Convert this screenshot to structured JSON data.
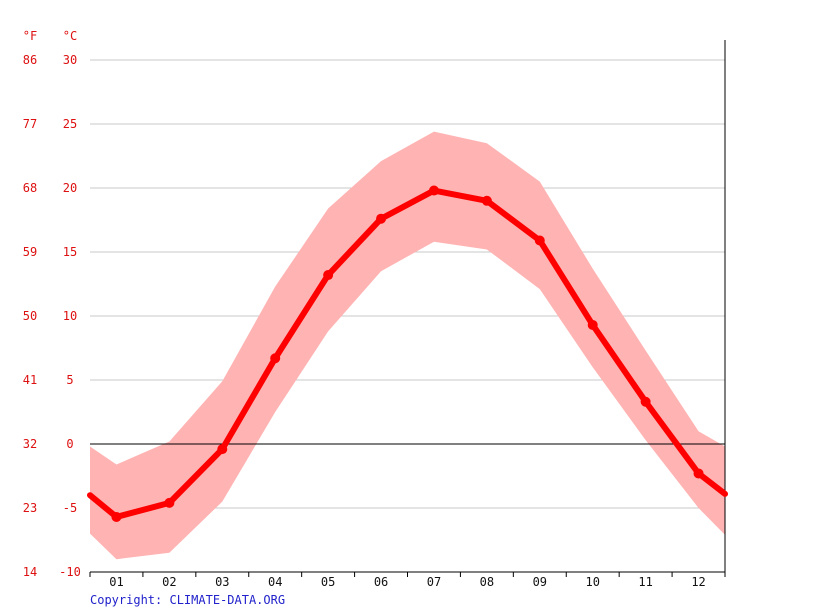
{
  "colors": {
    "axis_text": "#dd1111",
    "line": "#ff0000",
    "band": "#ffb3b3",
    "grid": "#c8c8c8",
    "zero_line": "#000000",
    "copyright": "#2222cc",
    "x_text": "#111111"
  },
  "chart_data": {
    "type": "line",
    "title": "",
    "xlabel": "",
    "ylabel": "",
    "unit_left": "°F",
    "unit_right": "°C",
    "categories": [
      "01",
      "02",
      "03",
      "04",
      "05",
      "06",
      "07",
      "08",
      "09",
      "10",
      "11",
      "12"
    ],
    "y_ticks_c": [
      30,
      25,
      20,
      15,
      10,
      5,
      0,
      -5,
      -10
    ],
    "y_ticks_f": [
      86,
      77,
      68,
      59,
      50,
      41,
      32,
      23,
      14
    ],
    "ylim": [
      -10,
      30
    ],
    "grid": true,
    "series": [
      {
        "values": [
          -5.7,
          -4.6,
          -0.4,
          6.7,
          13.2,
          17.6,
          19.8,
          19.0,
          15.9,
          9.3,
          3.3,
          -2.3
        ]
      }
    ],
    "band": {
      "upper": [
        -1.6,
        0.2,
        4.9,
        12.3,
        18.4,
        22.1,
        24.4,
        23.5,
        20.5,
        13.7,
        7.3,
        1.0
      ],
      "lower": [
        -9.0,
        -8.5,
        -4.5,
        2.5,
        8.8,
        13.5,
        15.8,
        15.2,
        12.1,
        6.0,
        0.3,
        -5.0
      ]
    },
    "edge_values": {
      "start": -4.0,
      "end": -3.9,
      "band_start_upper": -0.2,
      "band_start_lower": -7.0,
      "band_end_upper": -0.2,
      "band_end_lower": -7.1
    }
  },
  "footer": {
    "copyright": "Copyright: CLIMATE-DATA.ORG"
  }
}
